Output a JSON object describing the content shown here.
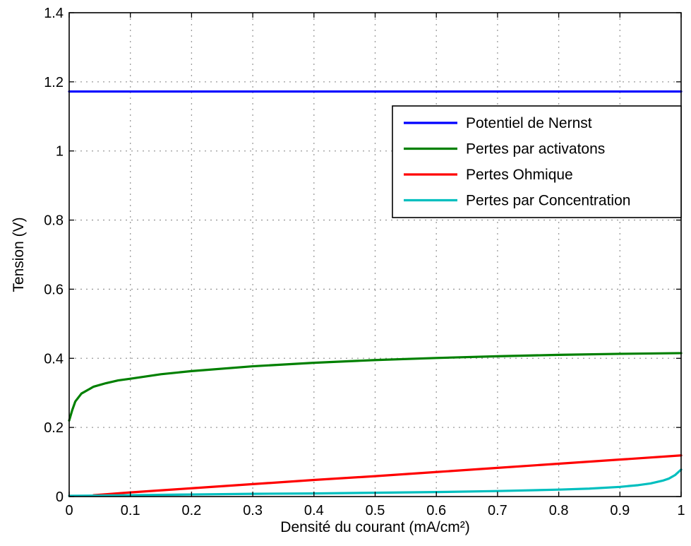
{
  "chart_data": {
    "type": "line",
    "xlabel": "Densité du courant (mA/cm²)",
    "ylabel": "Tension (V)",
    "xlim": [
      0,
      1
    ],
    "ylim": [
      0,
      1.4
    ],
    "x_ticks": [
      "0",
      "0.1",
      "0.2",
      "0.3",
      "0.4",
      "0.5",
      "0.6",
      "0.7",
      "0.8",
      "0.9",
      "1"
    ],
    "y_ticks": [
      "0",
      "0.2",
      "0.4",
      "0.6",
      "0.8",
      "1",
      "1.2",
      "1.4"
    ],
    "grid": true,
    "legend_position": "top-right",
    "series": [
      {
        "name": "Potentiel de Nernst",
        "color": "#0000ff",
        "x": [
          0,
          1
        ],
        "y": [
          1.172,
          1.172
        ]
      },
      {
        "name": "Pertes par activatons",
        "color": "#008000",
        "x": [
          0,
          0.005,
          0.01,
          0.02,
          0.04,
          0.06,
          0.08,
          0.1,
          0.15,
          0.2,
          0.3,
          0.4,
          0.5,
          0.6,
          0.7,
          0.8,
          0.9,
          1.0
        ],
        "y": [
          0.22,
          0.25,
          0.275,
          0.298,
          0.318,
          0.328,
          0.336,
          0.341,
          0.354,
          0.363,
          0.377,
          0.387,
          0.395,
          0.401,
          0.406,
          0.41,
          0.413,
          0.415
        ]
      },
      {
        "name": "Pertes Ohmique",
        "color": "#ff0000",
        "x": [
          0.04,
          0.1,
          0.2,
          0.3,
          0.4,
          0.5,
          0.6,
          0.7,
          0.8,
          0.9,
          1.0
        ],
        "y": [
          0.004,
          0.012,
          0.024,
          0.036,
          0.048,
          0.059,
          0.071,
          0.083,
          0.095,
          0.107,
          0.119
        ]
      },
      {
        "name": "Pertes par Concentration",
        "color": "#00bfbf",
        "x": [
          0,
          0.1,
          0.2,
          0.3,
          0.4,
          0.5,
          0.6,
          0.7,
          0.8,
          0.85,
          0.9,
          0.93,
          0.95,
          0.97,
          0.98,
          0.99,
          1.0
        ],
        "y": [
          0.002,
          0.004,
          0.006,
          0.008,
          0.009,
          0.011,
          0.013,
          0.016,
          0.02,
          0.023,
          0.028,
          0.033,
          0.038,
          0.046,
          0.052,
          0.062,
          0.078
        ]
      }
    ]
  }
}
